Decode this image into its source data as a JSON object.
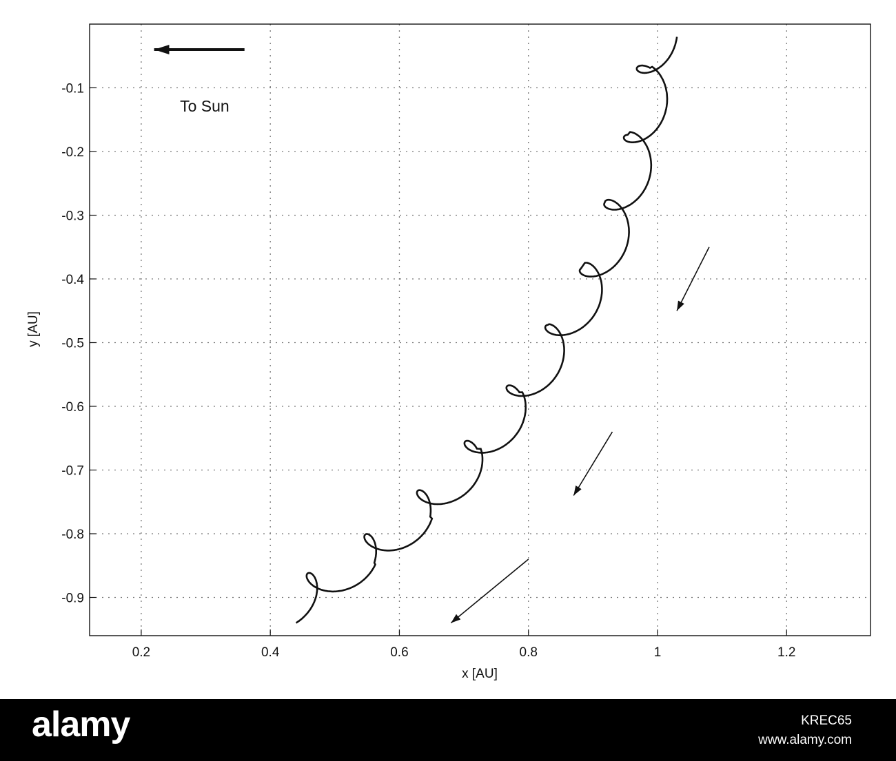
{
  "chart_data": {
    "type": "line",
    "title": "",
    "xlabel": "x [AU]",
    "ylabel": "y [AU]",
    "xlim": [
      0.12,
      1.33
    ],
    "ylim": [
      -0.96,
      0.0
    ],
    "x_ticks": [
      0.2,
      0.4,
      0.6,
      0.8,
      1,
      1.2
    ],
    "x_tick_labels": [
      "0.2",
      "0.4",
      "0.6",
      "0.8",
      "1",
      "1.2"
    ],
    "y_ticks": [
      -0.1,
      -0.2,
      -0.3,
      -0.4,
      -0.5,
      -0.6,
      -0.7,
      -0.8,
      -0.9
    ],
    "y_tick_labels": [
      "-0.1",
      "-0.2",
      "-0.3",
      "-0.4",
      "-0.5",
      "-0.6",
      "-0.7",
      "-0.8",
      "-0.9"
    ],
    "grid": true,
    "series": [
      {
        "guiding_center": [
          {
            "x": 1.03,
            "y": -0.02
          },
          {
            "x": 1.02,
            "y": -0.1
          },
          {
            "x": 1.0,
            "y": -0.2
          },
          {
            "x": 0.97,
            "y": -0.3
          },
          {
            "x": 0.93,
            "y": -0.41
          },
          {
            "x": 0.87,
            "y": -0.51
          },
          {
            "x": 0.8,
            "y": -0.62
          },
          {
            "x": 0.73,
            "y": -0.71
          },
          {
            "x": 0.64,
            "y": -0.8
          },
          {
            "x": 0.55,
            "y": -0.87
          },
          {
            "x": 0.44,
            "y": -0.94
          }
        ],
        "loop_centers": [
          {
            "x": 0.985,
            "y": -0.1
          },
          {
            "x": 0.965,
            "y": -0.195
          },
          {
            "x": 0.935,
            "y": -0.3
          },
          {
            "x": 0.895,
            "y": -0.405
          },
          {
            "x": 0.84,
            "y": -0.51
          },
          {
            "x": 0.775,
            "y": -0.615
          },
          {
            "x": 0.705,
            "y": -0.71
          },
          {
            "x": 0.615,
            "y": -0.795
          },
          {
            "x": 0.52,
            "y": -0.865
          },
          {
            "x": 0.42,
            "y": -0.92
          }
        ]
      }
    ],
    "annotations": [
      {
        "text": "To Sun",
        "x": 0.26,
        "y": -0.04,
        "arrow_from": [
          0.36,
          -0.04
        ],
        "arrow_to": [
          0.22,
          -0.04
        ]
      }
    ],
    "motion_arrows": [
      {
        "from": [
          1.08,
          -0.35
        ],
        "to": [
          1.03,
          -0.45
        ]
      },
      {
        "from": [
          0.93,
          -0.64
        ],
        "to": [
          0.87,
          -0.74
        ]
      },
      {
        "from": [
          0.8,
          -0.84
        ],
        "to": [
          0.68,
          -0.94
        ]
      }
    ]
  },
  "watermark": {
    "logo": "alamy",
    "image_id": "KREC65",
    "url": "www.alamy.com"
  }
}
